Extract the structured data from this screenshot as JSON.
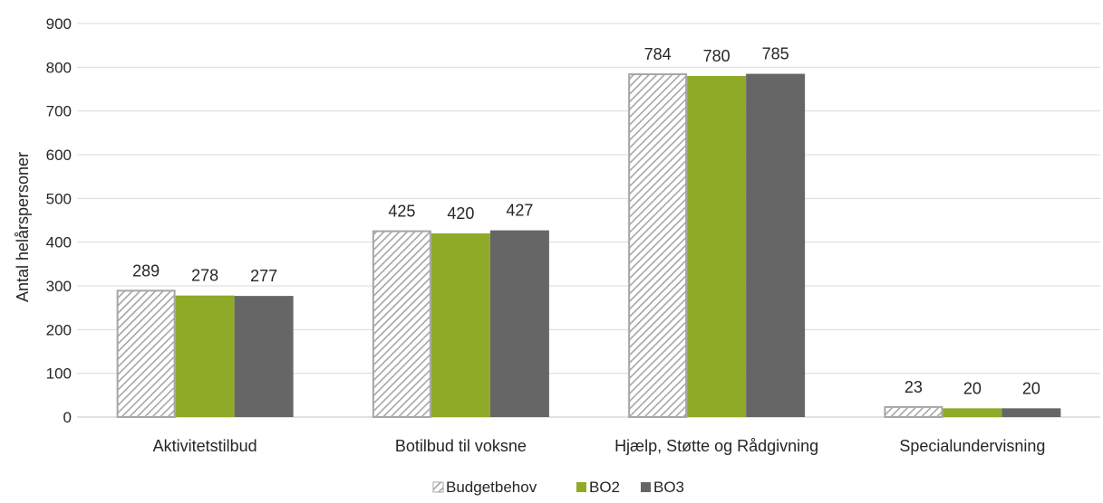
{
  "chart_data": {
    "type": "bar",
    "title": "",
    "xlabel": "",
    "ylabel": "Antal helårspersoner",
    "ylim": [
      0,
      900
    ],
    "yticks": [
      0,
      100,
      200,
      300,
      400,
      500,
      600,
      700,
      800,
      900
    ],
    "grid": true,
    "legend_position": "bottom",
    "categories": [
      "Aktivitetstilbud",
      "Botilbud til voksne",
      "Hjælp, Støtte og Rådgivning",
      "Specialundervisning"
    ],
    "series": [
      {
        "name": "Budgetbehov",
        "values": [
          289,
          425,
          784,
          23
        ],
        "color": "#a6a6a6",
        "pattern": "diagonal-hatch"
      },
      {
        "name": "BO2",
        "values": [
          278,
          420,
          780,
          20
        ],
        "color": "#8faa27"
      },
      {
        "name": "BO3",
        "values": [
          277,
          427,
          785,
          20
        ],
        "color": "#666666"
      }
    ]
  }
}
